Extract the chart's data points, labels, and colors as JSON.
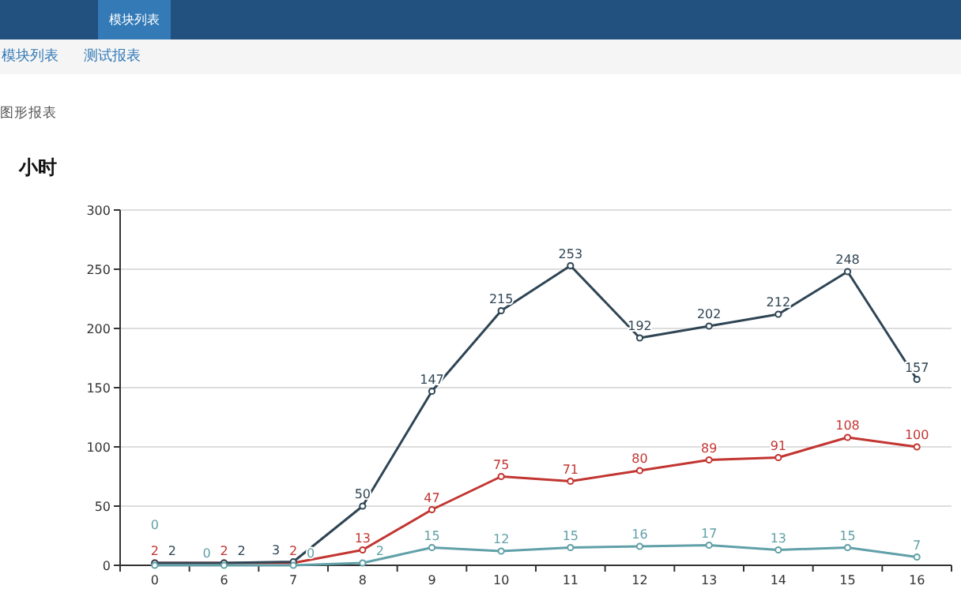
{
  "chart_data": {
    "type": "line",
    "title": "图形报表",
    "ylabel": "小时",
    "annotations": [
      "模块列表",
      "模块列表",
      "测试报表"
    ],
    "categories": [
      "0",
      "6",
      "7",
      "8",
      "9",
      "10",
      "11",
      "12",
      "13",
      "14",
      "15",
      "16"
    ],
    "series": [
      {
        "color": "#c23531",
        "values": [
          2,
          2,
          2,
          13,
          47,
          75,
          71,
          80,
          89,
          91,
          108,
          100
        ]
      },
      {
        "color": "#2f4554",
        "values": [
          2,
          2,
          3,
          50,
          147,
          215,
          253,
          192,
          202,
          212,
          248,
          157
        ]
      },
      {
        "color": "#61a0a8",
        "values": [
          0,
          0,
          0,
          2,
          15,
          12,
          15,
          16,
          17,
          13,
          15,
          7
        ]
      }
    ],
    "ylim": [
      0,
      300
    ],
    "yticks": [
      0,
      50,
      100,
      150,
      200,
      250,
      300
    ],
    "grid": "y",
    "marker": "circle",
    "data_labels": true
  }
}
